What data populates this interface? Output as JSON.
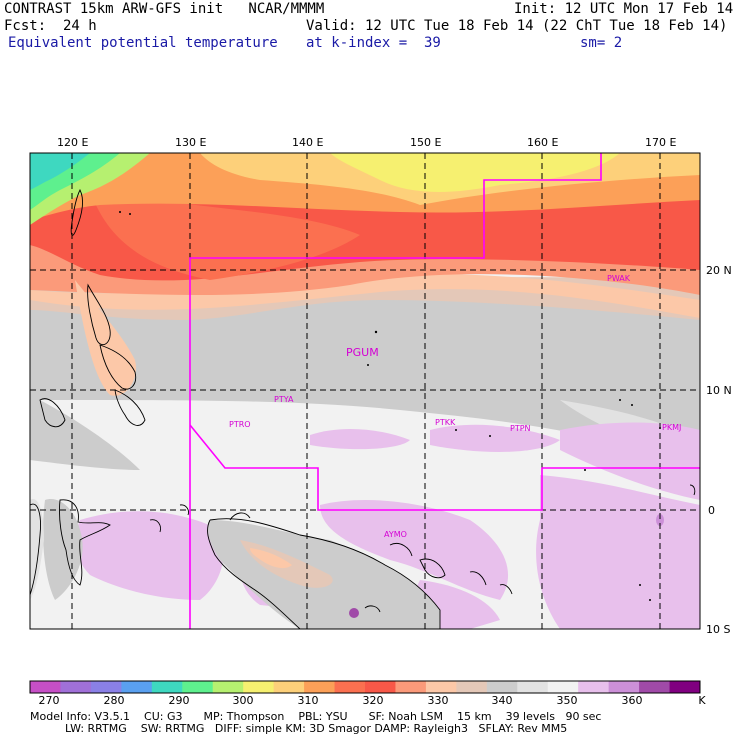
{
  "header": {
    "title": "CONTRAST 15km ARW-GFS init   NCAR/MMMM",
    "init": "Init: 12 UTC Mon 17 Feb 14",
    "fcst": "Fcst:  24 h",
    "valid": "Valid: 12 UTC Tue 18 Feb 14 (22 ChT Tue 18 Feb 14)",
    "field": "Equivalent potential temperature",
    "level": "at k-index =  39",
    "smooth": "sm= 2"
  },
  "map": {
    "lon_labels": [
      "120 E",
      "130 E",
      "140 E",
      "150 E",
      "160 E",
      "170 E"
    ],
    "lat_labels": [
      "20 N",
      "10 N",
      "0",
      "10 S"
    ],
    "stations": [
      "PGUM",
      "PTYA",
      "PTRO",
      "PTKK",
      "PTPN",
      "PKMJ",
      "PWAK",
      "AYMO"
    ]
  },
  "colorbar": {
    "labels": [
      "270",
      "280",
      "290",
      "300",
      "310",
      "320",
      "330",
      "340",
      "350",
      "360"
    ],
    "unit": "K",
    "colors": [
      "#c64fc6",
      "#a070d8",
      "#8a80e6",
      "#5aa0f0",
      "#3ed8c0",
      "#5ef08e",
      "#b6f070",
      "#f6f070",
      "#fdd07a",
      "#fca058",
      "#fb7050",
      "#f85848",
      "#fb9a7a",
      "#fcc8a8",
      "#e4c8b8",
      "#cccccc",
      "#e2e2e2",
      "#f2f2f2",
      "#e8c0ec",
      "#cc90d8",
      "#a04aa8",
      "#800080"
    ]
  },
  "footer": {
    "line1": "Model Info: V3.5.1    CU: G3      MP: Thompson    PBL: YSU      SF: Noah LSM    15 km    39 levels   90 sec",
    "line2": "          LW: RRTMG    SW: RRTMG   DIFF: simple KM: 3D Smagor DAMP: Rayleigh3   SFLAY: Rev MM5"
  }
}
